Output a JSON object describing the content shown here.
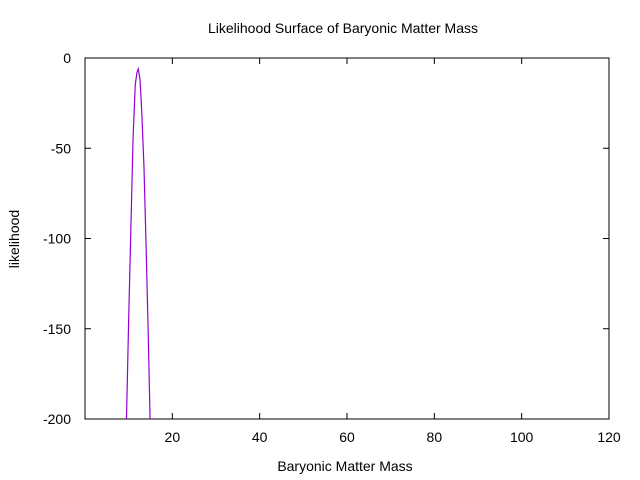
{
  "chart_data": {
    "type": "line",
    "title": "Likelihood Surface of Baryonic Matter Mass",
    "xlabel": "Baryonic Matter Mass",
    "ylabel": "likelihood",
    "xlim": [
      0,
      120
    ],
    "ylim": [
      -200,
      0
    ],
    "x_ticks": [
      20,
      40,
      60,
      80,
      100,
      120
    ],
    "y_ticks": [
      0,
      -50,
      -100,
      -150,
      -200
    ],
    "grid": false,
    "series": [
      {
        "color": "#9400d3",
        "x": [
          9.5,
          10.0,
          10.5,
          11.0,
          11.5,
          11.9,
          12.2,
          12.6,
          13.0,
          13.5,
          14.0,
          14.5,
          14.9
        ],
        "y": [
          -200,
          -145,
          -95,
          -45,
          -15,
          -8,
          -6,
          -12,
          -30,
          -60,
          -105,
          -155,
          -200
        ]
      }
    ]
  }
}
